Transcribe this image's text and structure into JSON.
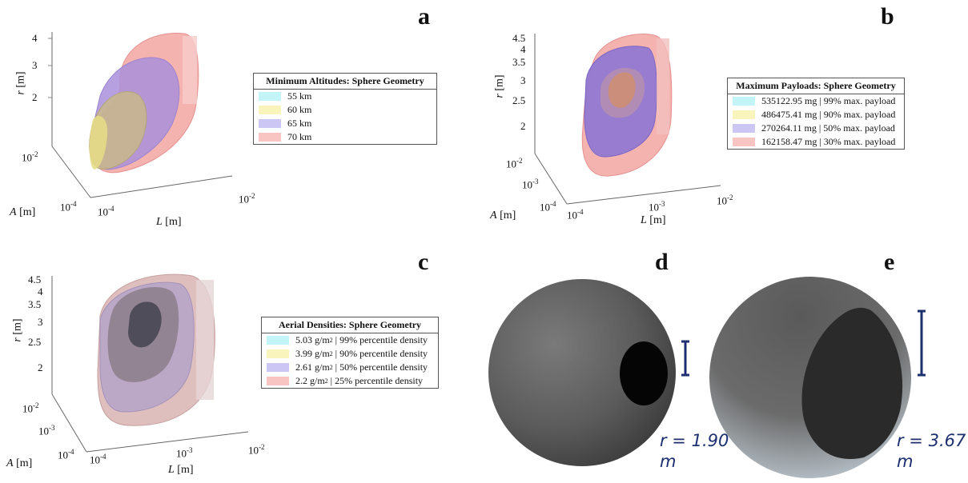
{
  "panels": {
    "a": {
      "letter": "a",
      "legend": {
        "title": "Minimum Altitudes: Sphere Geometry",
        "items": [
          {
            "label": "55 km",
            "color": "#aef0f6"
          },
          {
            "label": "60 km",
            "color": "#f6f0a6"
          },
          {
            "label": "65 km",
            "color": "#b9b3ef"
          },
          {
            "label": "70 km",
            "color": "#f5b1ad"
          }
        ]
      },
      "ticks_r": [
        "4",
        "3",
        "2"
      ],
      "ticks_A": [
        "10-2",
        "10-4"
      ],
      "ticks_L": [
        "10-4",
        "10-2"
      ],
      "axis": {
        "r": "r",
        "A": "A",
        "L": "L",
        "unit": "[m]"
      }
    },
    "b": {
      "letter": "b",
      "legend": {
        "title": "Maximum Payloads: Sphere Geometry",
        "items": [
          {
            "label": "535122.95 mg | 99% max. payload",
            "color": "#aef0f6"
          },
          {
            "label": "486475.41 mg | 90% max. payload",
            "color": "#f6f0a6"
          },
          {
            "label": "270264.11 mg | 50% max. payload",
            "color": "#b9b3ef"
          },
          {
            "label": "162158.47 mg | 30% max. payload",
            "color": "#f5b1ad"
          }
        ]
      },
      "ticks_r": [
        "4.5",
        "4",
        "3.5",
        "3",
        "2.5",
        "2"
      ],
      "ticks_A": [
        "10-2",
        "10-3",
        "10-4"
      ],
      "ticks_L": [
        "10-4",
        "10-3",
        "10-2"
      ],
      "axis": {
        "r": "r",
        "A": "A",
        "L": "L",
        "unit": "[m]"
      }
    },
    "c": {
      "letter": "c",
      "legend": {
        "title": "Aerial Densities: Sphere Geometry",
        "items": [
          {
            "value": "5.03",
            "suffix": " | 99% percentile density",
            "color": "#aef0f6"
          },
          {
            "value": "3.99",
            "suffix": " | 90% percentile density",
            "color": "#f6f0a6"
          },
          {
            "value": "2.61",
            "suffix": " | 50% percentile density",
            "color": "#b9b3ef"
          },
          {
            "value": "2.2",
            "suffix": " | 25% percentile density",
            "color": "#f5b1ad"
          }
        ],
        "unit": "g/m",
        "unit_exp": "2"
      },
      "ticks_r": [
        "4.5",
        "4",
        "3.5",
        "3",
        "2.5",
        "2"
      ],
      "ticks_A": [
        "10-2",
        "10-3",
        "10-4"
      ],
      "ticks_L": [
        "10-4",
        "10-3",
        "10-2"
      ],
      "axis": {
        "r": "r",
        "A": "A",
        "L": "L",
        "unit": "[m]"
      }
    },
    "d": {
      "letter": "d",
      "radius_text": "r = 1.90",
      "radius_unit": "m"
    },
    "e": {
      "letter": "e",
      "radius_text": "r = 3.67",
      "radius_unit": "m"
    }
  },
  "chart_data": [
    {
      "panel": "a",
      "type": "surface-3d",
      "zlabel": "r [m]",
      "xlabel": "L [m]",
      "ylabel": "A [m]",
      "x_scale": "log",
      "y_scale": "log",
      "legend_title": "Minimum Altitudes: Sphere Geometry",
      "series": [
        {
          "name": "55 km"
        },
        {
          "name": "60 km"
        },
        {
          "name": "65 km"
        },
        {
          "name": "70 km"
        }
      ]
    },
    {
      "panel": "b",
      "type": "surface-3d",
      "zlabel": "r [m]",
      "xlabel": "L [m]",
      "ylabel": "A [m]",
      "x_scale": "log",
      "y_scale": "log",
      "legend_title": "Maximum Payloads: Sphere Geometry",
      "series": [
        {
          "name": "535122.95 mg | 99% max. payload"
        },
        {
          "name": "486475.41 mg | 90% max. payload"
        },
        {
          "name": "270264.11 mg | 50% max. payload"
        },
        {
          "name": "162158.47 mg | 30% max. payload"
        }
      ]
    },
    {
      "panel": "c",
      "type": "surface-3d",
      "zlabel": "r [m]",
      "xlabel": "L [m]",
      "ylabel": "A [m]",
      "x_scale": "log",
      "y_scale": "log",
      "legend_title": "Aerial Densities: Sphere Geometry",
      "series": [
        {
          "name": "5.03 g/m2 | 99% percentile density"
        },
        {
          "name": "3.99 g/m2 | 90% percentile density"
        },
        {
          "name": "2.61 g/m2 | 50% percentile density"
        },
        {
          "name": "2.2 g/m2 | 25% percentile density"
        }
      ]
    },
    {
      "panel": "d",
      "type": "sphere-render",
      "r_m": 1.9
    },
    {
      "panel": "e",
      "type": "sphere-render",
      "r_m": 3.67
    }
  ]
}
